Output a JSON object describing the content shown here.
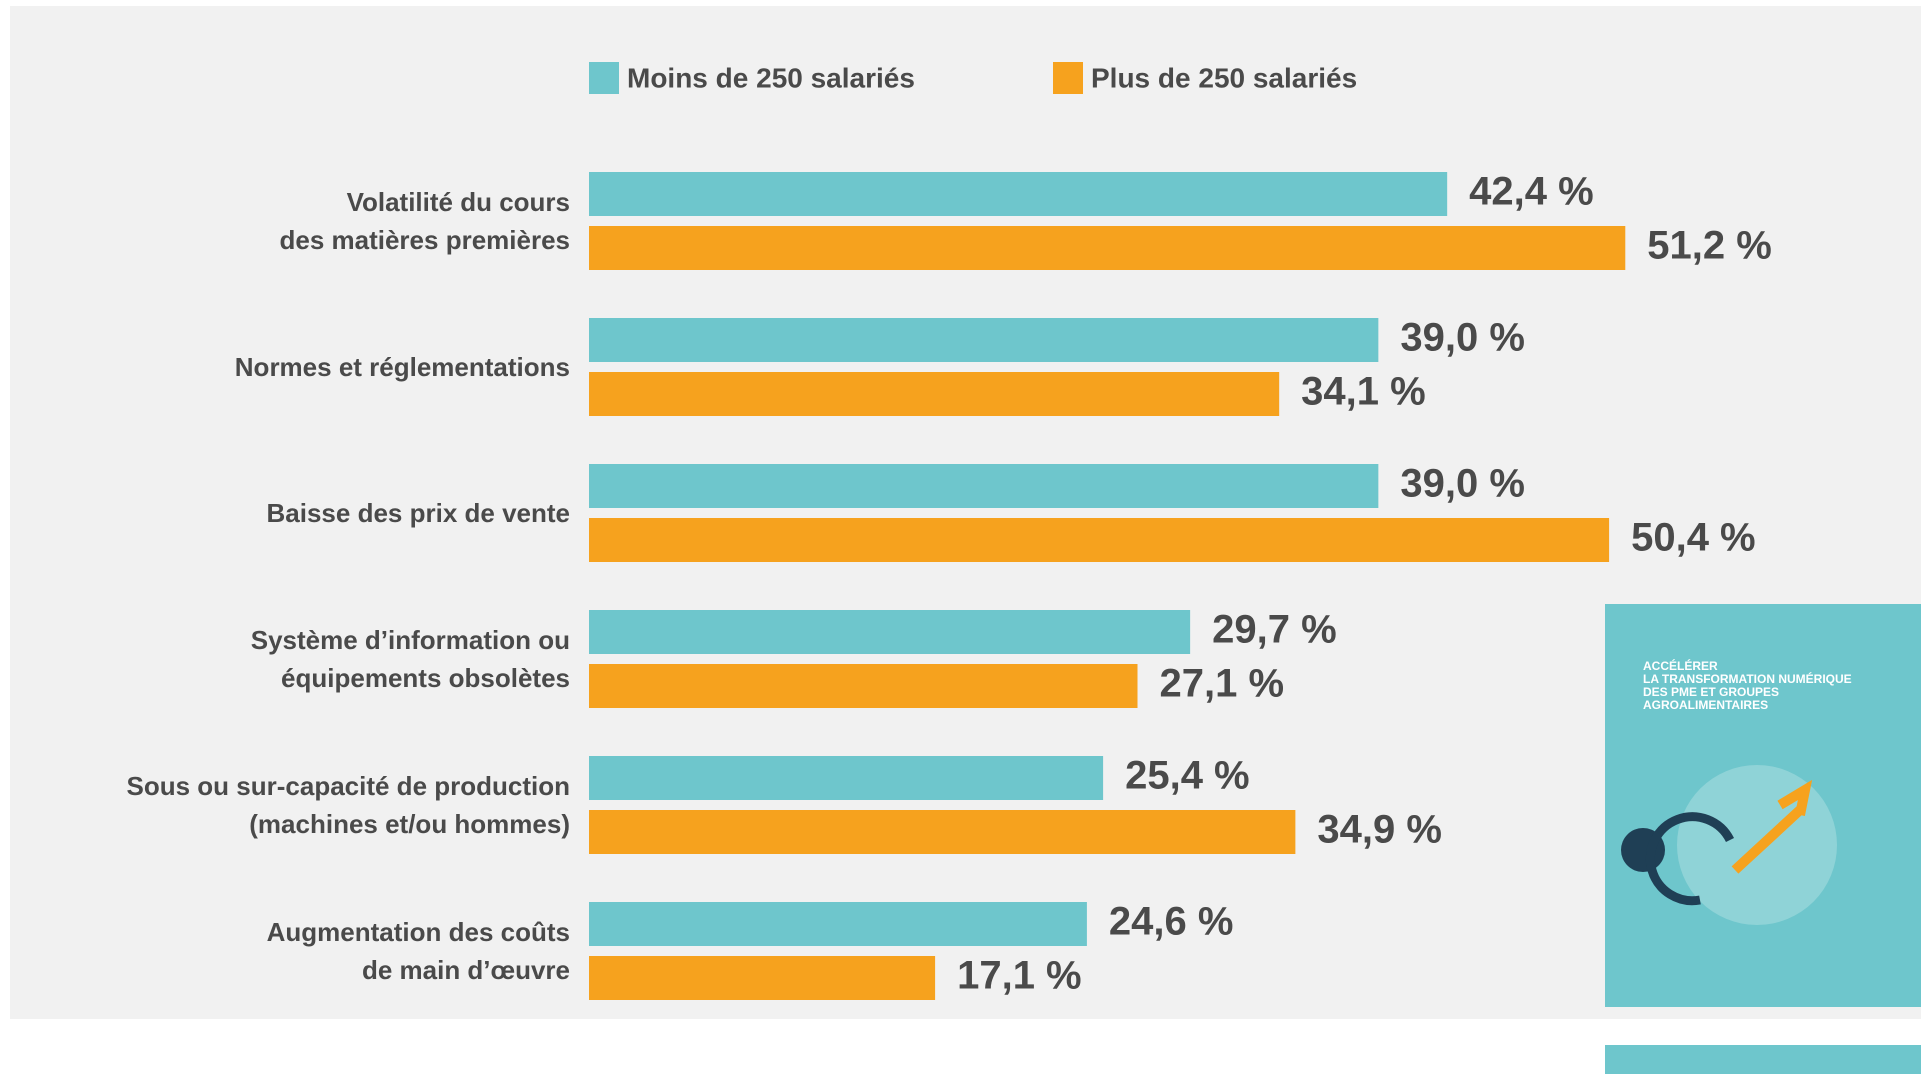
{
  "chart_data": {
    "type": "hbar-grouped",
    "categories": [
      "Volatilité du cours\ndes matières premières",
      "Normes et réglementations",
      "Baisse des prix de vente",
      "Système d’information ou\néquipements obsolètes",
      "Sous ou sur-capacité de production\n(machines et/ou hommes)",
      "Augmentation des coûts\nde main d’œuvre"
    ],
    "series": [
      {
        "name": "Moins de 250 salariés",
        "color": "#6ec6cc",
        "values": [
          42.4,
          39.0,
          39.0,
          29.7,
          25.4,
          24.6
        ],
        "value_labels": [
          "42,4 %",
          "39,0 %",
          "39,0 %",
          "29,7 %",
          "25,4 %",
          "24,6 %"
        ]
      },
      {
        "name": "Plus de 250 salariés",
        "color": "#f6a21e",
        "values": [
          51.2,
          34.1,
          50.4,
          27.1,
          34.9,
          17.1
        ],
        "value_labels": [
          "51,2 %",
          "34,1 %",
          "50,4 %",
          "27,1 %",
          "34,9 %",
          "17,1 %"
        ]
      }
    ],
    "legend": "top"
  },
  "inset": {
    "title": "ACCÉLÉRER\nLA TRANSFORMATION NUMÉRIQUE\nDES PME ET GROUPES\nAGROALIMENTAIRES"
  }
}
